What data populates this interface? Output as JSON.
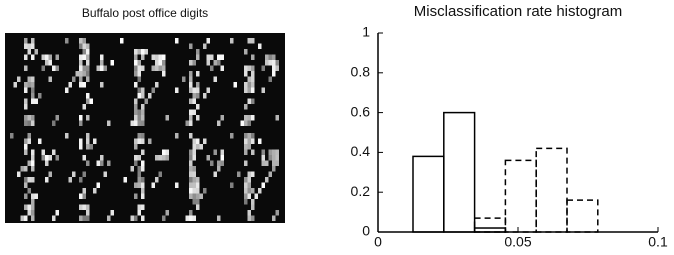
{
  "panel_title": "Buffalo post office digits",
  "chart_data": {
    "type": "histogram",
    "title": "Misclassification rate histogram",
    "bins": [
      0.0125,
      0.0235,
      0.0345,
      0.0455,
      0.0565,
      0.0675,
      0.0785
    ],
    "series": [
      {
        "color": "#000000",
        "linestyle": "solid",
        "values": [
          0.38,
          0.6,
          0.02,
          0,
          0,
          0
        ]
      },
      {
        "color": "#000000",
        "linestyle": "dashed",
        "values": [
          0,
          0,
          0.07,
          0.36,
          0.42,
          0.16
        ]
      }
    ],
    "xlim": [
      0,
      0.1
    ],
    "xticks": [
      0,
      0.05,
      0.1
    ],
    "ylim": [
      0,
      1
    ],
    "yticks": [
      0,
      0.2,
      0.4,
      0.6,
      0.8,
      1
    ]
  }
}
